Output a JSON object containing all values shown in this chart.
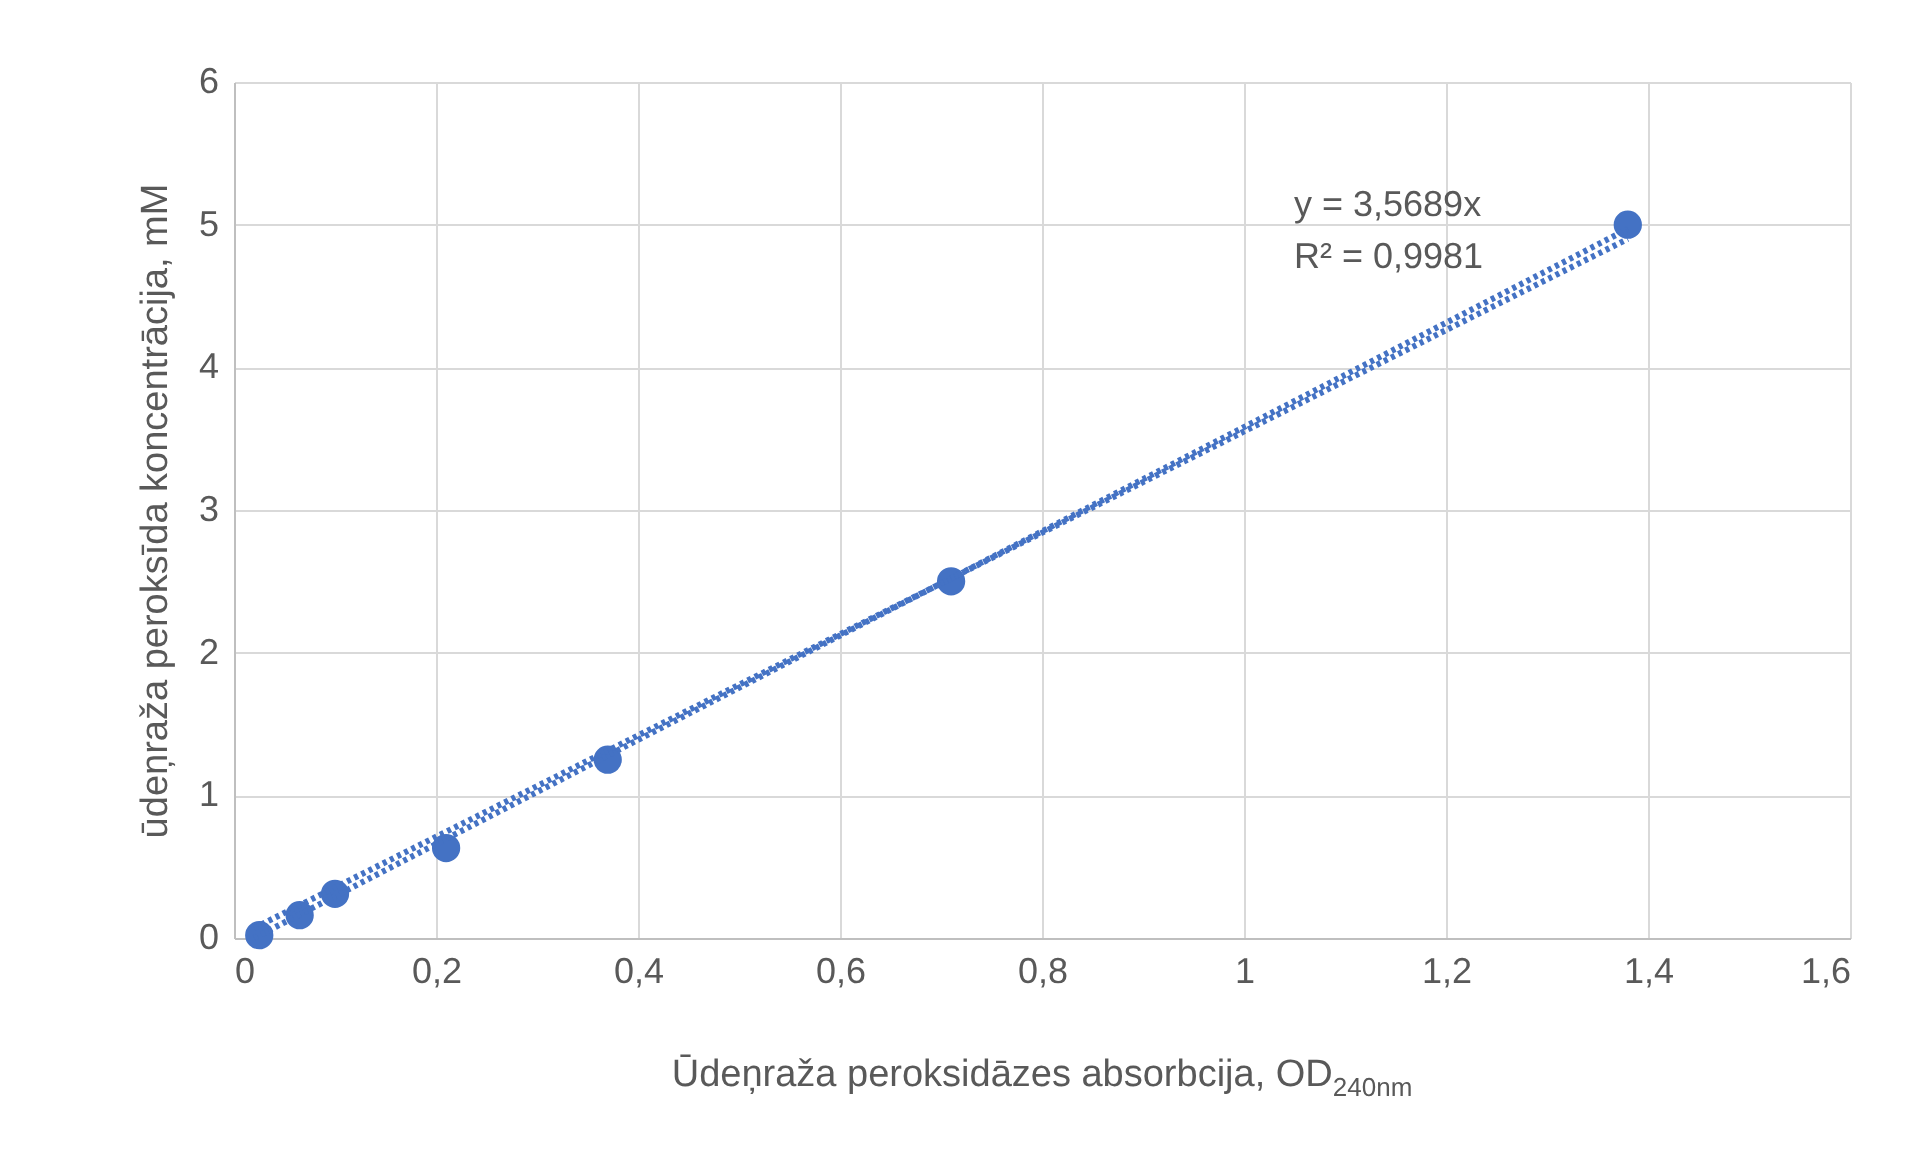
{
  "chart_data": {
    "type": "scatter",
    "xlabel": "Ūdeņraža peroksidāzes absorbcija, OD$_{240nm}$",
    "ylabel": "ūdeņraža peroksīda koncentrācija, mM",
    "xlim": [
      0,
      1.6
    ],
    "ylim": [
      0,
      6
    ],
    "xticks": [
      0,
      {
        "value": 0.2,
        "label": "0,2"
      },
      {
        "value": 0.4,
        "label": "0,4"
      },
      {
        "value": 0.6,
        "label": "0,6"
      },
      {
        "value": 0.8,
        "label": "0,8"
      },
      1,
      {
        "value": 1.2,
        "label": "1,2"
      },
      {
        "value": 1.4,
        "label": "1,4"
      },
      {
        "value": 1.6,
        "label": "1,6"
      }
    ],
    "yticks": [
      0,
      1,
      2,
      3,
      4,
      5,
      6
    ],
    "grid": true,
    "series": [
      {
        "marker": "circle",
        "color": "#4472c4",
        "x": [
          0.025,
          0.065,
          0.1,
          0.21,
          0.37,
          0.71,
          1.38
        ],
        "values": [
          0.02,
          0.16,
          0.31,
          0.63,
          1.25,
          2.5,
          5.0
        ]
      },
      {
        "type": "line",
        "color": "#4472c4",
        "line_style": "dotted",
        "x": [
          0.02,
          1.38
        ],
        "values": [
          0.07,
          4.9
        ]
      },
      {
        "type": "line",
        "color": "#4472c4",
        "line_style": "dotted",
        "x": [
          0.02,
          1.38
        ],
        "values": [
          0.0,
          4.97
        ]
      }
    ],
    "annotations": [
      "y = 3,5689x",
      "R² = 0,9981"
    ]
  }
}
